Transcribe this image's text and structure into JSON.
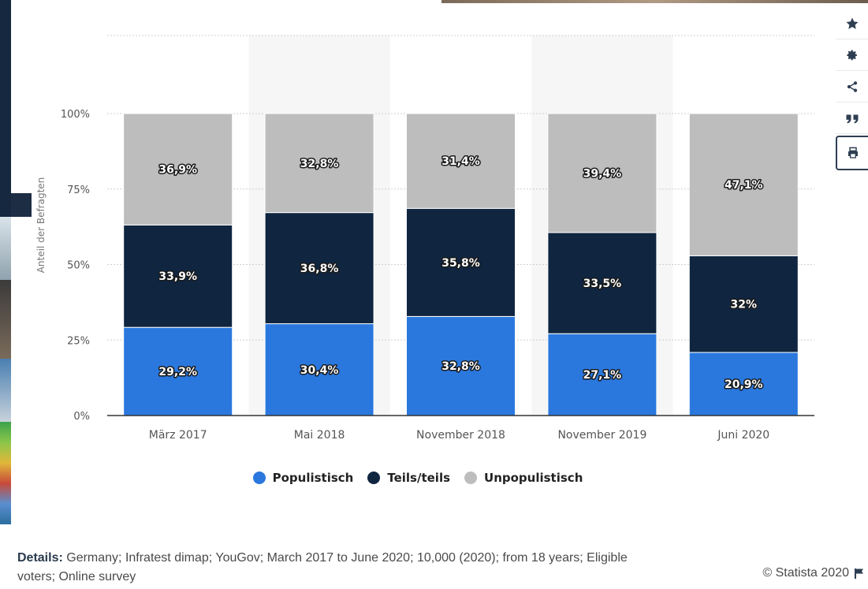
{
  "chart_data": {
    "type": "bar",
    "stacked": true,
    "ylabel": "Anteil der Befragten",
    "categories": [
      "März 2017",
      "Mai 2018",
      "November 2018",
      "November 2019",
      "Juni 2020"
    ],
    "yticks": [
      "0%",
      "25%",
      "50%",
      "75%",
      "100%"
    ],
    "ylim": [
      0,
      100
    ],
    "series": [
      {
        "name": "Populistisch",
        "color": "#2a78de",
        "values": [
          29.2,
          30.4,
          32.8,
          27.1,
          20.9
        ],
        "labels": [
          "29,2%",
          "30,4%",
          "32,8%",
          "27,1%",
          "20,9%"
        ]
      },
      {
        "name": "Teils/teils",
        "color": "#0f2540",
        "values": [
          33.9,
          36.8,
          35.8,
          33.5,
          32
        ],
        "labels": [
          "33,9%",
          "36,8%",
          "35,8%",
          "33,5%",
          "32%"
        ]
      },
      {
        "name": "Unpopulistisch",
        "color": "#bdbdbd",
        "values": [
          36.9,
          32.8,
          31.4,
          39.4,
          47.1
        ],
        "labels": [
          "36,9%",
          "32,8%",
          "31,4%",
          "39,4%",
          "47,1%"
        ]
      }
    ],
    "legend_position": "bottom",
    "grid": true
  },
  "footer": {
    "details_label": "Details:",
    "details_text": "Germany; Infratest dimap; YouGov; March 2017 to June 2020; 10,000 (2020); from 18 years; Eligible voters; Online survey",
    "copyright": "© Statista 2020"
  },
  "toolbar": {
    "icons": [
      "star-icon",
      "gear-icon",
      "share-icon",
      "quote-icon",
      "print-icon"
    ]
  }
}
